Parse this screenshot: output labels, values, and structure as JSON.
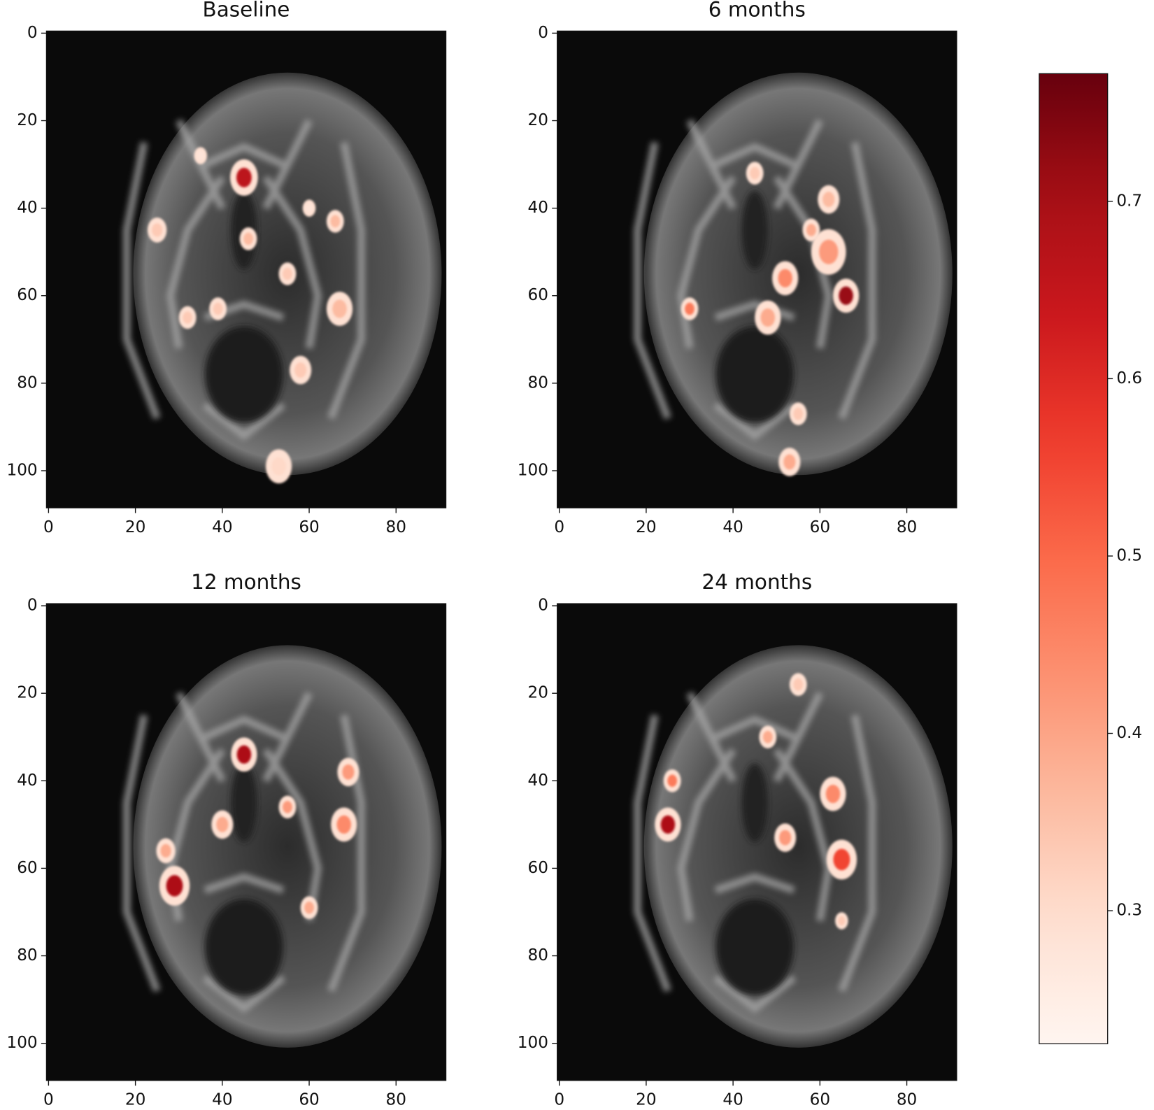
{
  "chart_data": [
    {
      "type": "image",
      "title": "Baseline",
      "xlim": [
        -0.5,
        91.5
      ],
      "ylim": [
        108.5,
        -0.5
      ],
      "xticks": [
        0,
        20,
        40,
        60,
        80
      ],
      "yticks": [
        0,
        20,
        40,
        60,
        80,
        100
      ]
    },
    {
      "type": "image",
      "title": "6 months",
      "xlim": [
        -0.5,
        91.5
      ],
      "ylim": [
        108.5,
        -0.5
      ],
      "xticks": [
        0,
        20,
        40,
        60,
        80
      ],
      "yticks": [
        0,
        20,
        40,
        60,
        80,
        100
      ]
    },
    {
      "type": "image",
      "title": "12 months",
      "xlim": [
        -0.5,
        91.5
      ],
      "ylim": [
        108.5,
        -0.5
      ],
      "xticks": [
        0,
        20,
        40,
        60,
        80
      ],
      "yticks": [
        0,
        20,
        40,
        60,
        80,
        100
      ]
    },
    {
      "type": "image",
      "title": "24 months",
      "xlim": [
        -0.5,
        91.5
      ],
      "ylim": [
        108.5,
        -0.5
      ],
      "xticks": [
        0,
        20,
        40,
        60,
        80
      ],
      "yticks": [
        0,
        20,
        40,
        60,
        80,
        100
      ]
    },
    {
      "type": "colorbar",
      "colormap": "Reds",
      "clim": [
        0.225,
        0.772
      ],
      "ticks": [
        0.3,
        0.4,
        0.5,
        0.6,
        0.7
      ]
    }
  ]
}
